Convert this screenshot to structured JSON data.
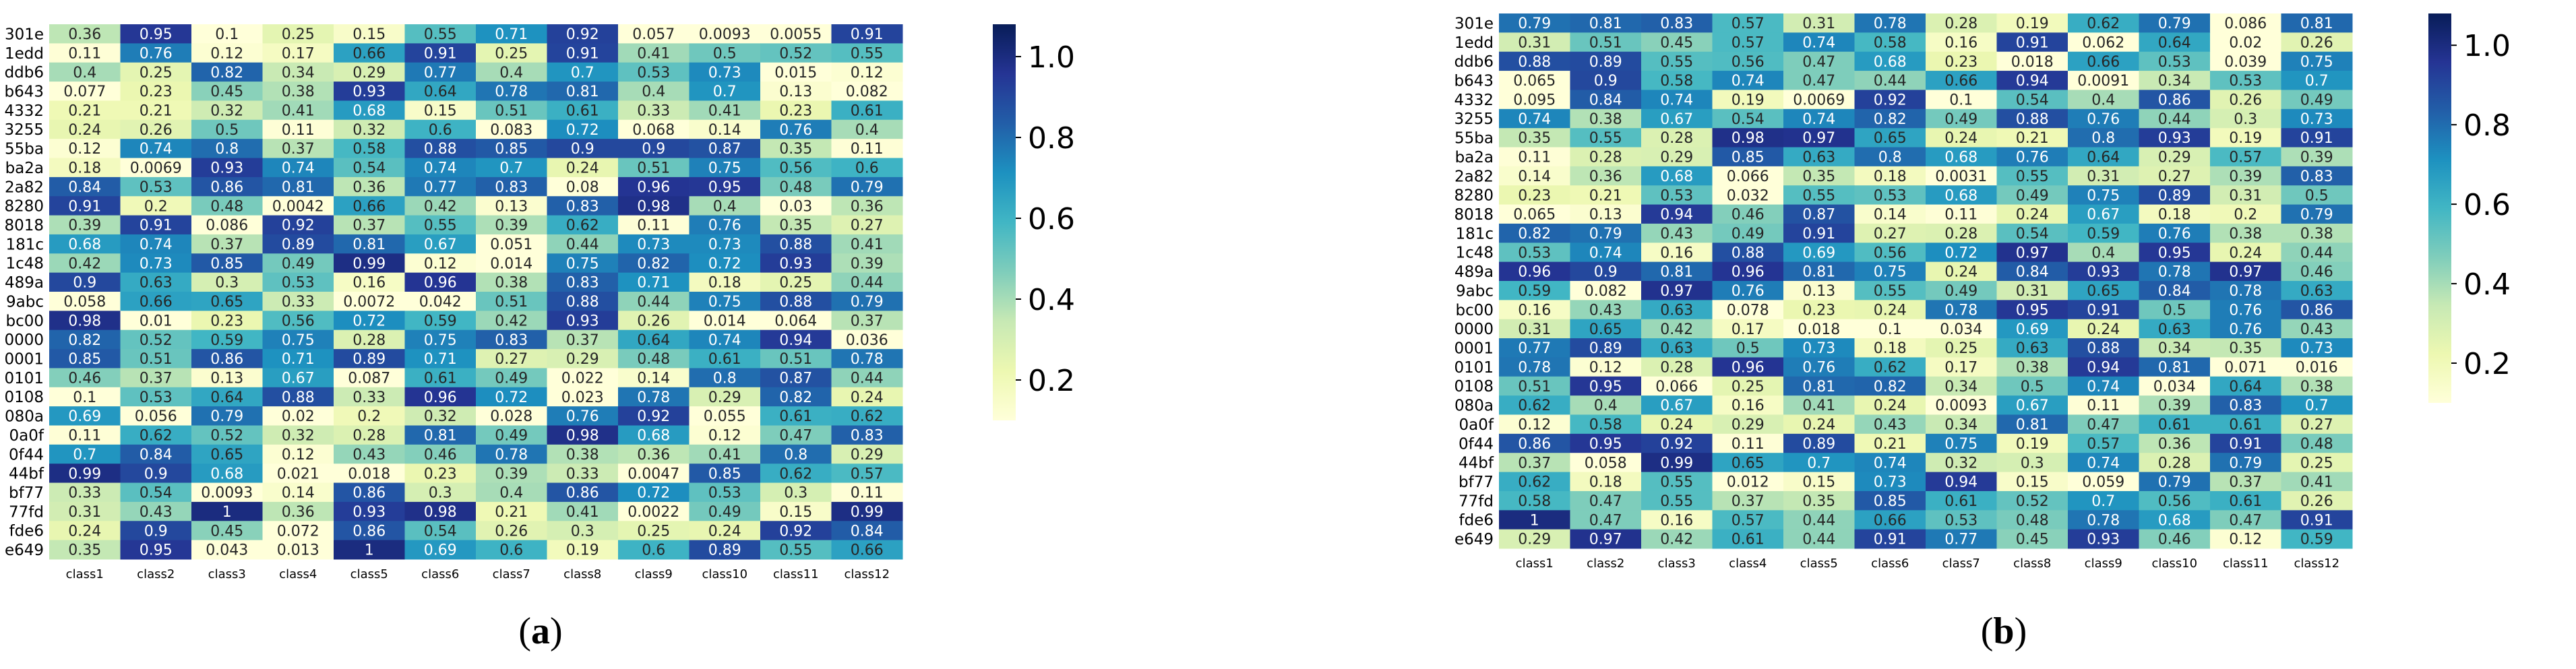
{
  "panels": [
    {
      "label": "(a)",
      "bold_char": "a"
    },
    {
      "label": "(b)",
      "bold_char": "b"
    }
  ],
  "chart_data": [
    {
      "type": "heatmap",
      "title": "",
      "xlabel": "",
      "ylabel": "",
      "row_labels": [
        "301e",
        "1edd",
        "ddb6",
        "b643",
        "4332",
        "3255",
        "55ba",
        "ba2a",
        "2a82",
        "8280",
        "8018",
        "181c",
        "1c48",
        "489a",
        "9abc",
        "bc00",
        "0000",
        "0001",
        "0101",
        "0108",
        "080a",
        "0a0f",
        "0f44",
        "44bf",
        "bf77",
        "77fd",
        "fde6",
        "e649"
      ],
      "col_labels": [
        "class1",
        "class2",
        "class3",
        "class4",
        "class5",
        "class6",
        "class7",
        "class8",
        "class9",
        "class10",
        "class11",
        "class12"
      ],
      "colorbar": {
        "min": 0.1,
        "max": 1.08,
        "ticks": [
          0.2,
          0.4,
          0.6,
          0.8,
          1.0
        ],
        "tick_labels": [
          "0.2",
          "0.4",
          "0.6",
          "0.8",
          "1.0"
        ],
        "colormap": "YlGnBu"
      },
      "values": [
        [
          "0.36",
          "0.95",
          "0.1",
          "0.25",
          "0.15",
          "0.55",
          "0.71",
          "0.92",
          "0.057",
          "0.0093",
          "0.0055",
          "0.91"
        ],
        [
          "0.11",
          "0.76",
          "0.12",
          "0.17",
          "0.66",
          "0.91",
          "0.25",
          "0.91",
          "0.41",
          "0.5",
          "0.52",
          "0.55"
        ],
        [
          "0.4",
          "0.25",
          "0.82",
          "0.34",
          "0.29",
          "0.77",
          "0.4",
          "0.7",
          "0.53",
          "0.73",
          "0.015",
          "0.12"
        ],
        [
          "0.077",
          "0.23",
          "0.45",
          "0.38",
          "0.93",
          "0.64",
          "0.78",
          "0.81",
          "0.4",
          "0.7",
          "0.13",
          "0.082"
        ],
        [
          "0.21",
          "0.21",
          "0.32",
          "0.41",
          "0.68",
          "0.15",
          "0.51",
          "0.61",
          "0.33",
          "0.41",
          "0.23",
          "0.61"
        ],
        [
          "0.24",
          "0.26",
          "0.5",
          "0.11",
          "0.32",
          "0.6",
          "0.083",
          "0.72",
          "0.068",
          "0.14",
          "0.76",
          "0.4"
        ],
        [
          "0.12",
          "0.74",
          "0.8",
          "0.37",
          "0.58",
          "0.88",
          "0.85",
          "0.9",
          "0.9",
          "0.87",
          "0.35",
          "0.11"
        ],
        [
          "0.18",
          "0.0069",
          "0.93",
          "0.74",
          "0.54",
          "0.74",
          "0.7",
          "0.24",
          "0.51",
          "0.75",
          "0.56",
          "0.6"
        ],
        [
          "0.84",
          "0.53",
          "0.86",
          "0.81",
          "0.36",
          "0.77",
          "0.83",
          "0.08",
          "0.96",
          "0.95",
          "0.48",
          "0.79"
        ],
        [
          "0.91",
          "0.2",
          "0.48",
          "0.0042",
          "0.66",
          "0.42",
          "0.13",
          "0.83",
          "0.98",
          "0.4",
          "0.03",
          "0.36"
        ],
        [
          "0.39",
          "0.91",
          "0.086",
          "0.92",
          "0.37",
          "0.55",
          "0.39",
          "0.62",
          "0.11",
          "0.76",
          "0.35",
          "0.27"
        ],
        [
          "0.68",
          "0.74",
          "0.37",
          "0.89",
          "0.81",
          "0.67",
          "0.051",
          "0.44",
          "0.73",
          "0.73",
          "0.88",
          "0.41"
        ],
        [
          "0.42",
          "0.73",
          "0.85",
          "0.49",
          "0.99",
          "0.12",
          "0.014",
          "0.75",
          "0.82",
          "0.72",
          "0.93",
          "0.39"
        ],
        [
          "0.9",
          "0.63",
          "0.3",
          "0.53",
          "0.16",
          "0.96",
          "0.38",
          "0.83",
          "0.71",
          "0.18",
          "0.25",
          "0.44"
        ],
        [
          "0.058",
          "0.66",
          "0.65",
          "0.33",
          "0.0072",
          "0.042",
          "0.51",
          "0.88",
          "0.44",
          "0.75",
          "0.88",
          "0.79"
        ],
        [
          "0.98",
          "0.01",
          "0.23",
          "0.56",
          "0.72",
          "0.59",
          "0.42",
          "0.93",
          "0.26",
          "0.014",
          "0.064",
          "0.37"
        ],
        [
          "0.82",
          "0.52",
          "0.59",
          "0.75",
          "0.28",
          "0.75",
          "0.83",
          "0.37",
          "0.64",
          "0.74",
          "0.94",
          "0.036"
        ],
        [
          "0.85",
          "0.51",
          "0.86",
          "0.71",
          "0.89",
          "0.71",
          "0.27",
          "0.29",
          "0.48",
          "0.61",
          "0.51",
          "0.78"
        ],
        [
          "0.46",
          "0.37",
          "0.13",
          "0.67",
          "0.087",
          "0.61",
          "0.49",
          "0.022",
          "0.14",
          "0.8",
          "0.87",
          "0.44"
        ],
        [
          "0.1",
          "0.53",
          "0.64",
          "0.88",
          "0.33",
          "0.96",
          "0.72",
          "0.023",
          "0.78",
          "0.29",
          "0.82",
          "0.24"
        ],
        [
          "0.69",
          "0.056",
          "0.79",
          "0.02",
          "0.2",
          "0.32",
          "0.028",
          "0.76",
          "0.92",
          "0.055",
          "0.61",
          "0.62"
        ],
        [
          "0.11",
          "0.62",
          "0.52",
          "0.32",
          "0.28",
          "0.81",
          "0.49",
          "0.98",
          "0.68",
          "0.12",
          "0.47",
          "0.83"
        ],
        [
          "0.7",
          "0.84",
          "0.65",
          "0.12",
          "0.43",
          "0.46",
          "0.78",
          "0.38",
          "0.36",
          "0.41",
          "0.8",
          "0.29"
        ],
        [
          "0.99",
          "0.9",
          "0.68",
          "0.021",
          "0.018",
          "0.23",
          "0.39",
          "0.33",
          "0.0047",
          "0.85",
          "0.62",
          "0.57"
        ],
        [
          "0.33",
          "0.54",
          "0.0093",
          "0.14",
          "0.86",
          "0.3",
          "0.4",
          "0.86",
          "0.72",
          "0.53",
          "0.3",
          "0.11"
        ],
        [
          "0.31",
          "0.43",
          "1",
          "0.36",
          "0.93",
          "0.98",
          "0.21",
          "0.41",
          "0.0022",
          "0.49",
          "0.15",
          "0.99"
        ],
        [
          "0.24",
          "0.9",
          "0.45",
          "0.072",
          "0.86",
          "0.54",
          "0.26",
          "0.3",
          "0.25",
          "0.24",
          "0.92",
          "0.84"
        ],
        [
          "0.35",
          "0.95",
          "0.043",
          "0.013",
          "1",
          "0.69",
          "0.6",
          "0.19",
          "0.6",
          "0.89",
          "0.55",
          "0.66"
        ]
      ]
    },
    {
      "type": "heatmap",
      "title": "",
      "xlabel": "",
      "ylabel": "",
      "row_labels": [
        "301e",
        "1edd",
        "ddb6",
        "b643",
        "4332",
        "3255",
        "55ba",
        "ba2a",
        "2a82",
        "8280",
        "8018",
        "181c",
        "1c48",
        "489a",
        "9abc",
        "bc00",
        "0000",
        "0001",
        "0101",
        "0108",
        "080a",
        "0a0f",
        "0f44",
        "44bf",
        "bf77",
        "77fd",
        "fde6",
        "e649"
      ],
      "col_labels": [
        "class1",
        "class2",
        "class3",
        "class4",
        "class5",
        "class6",
        "class7",
        "class8",
        "class9",
        "class10",
        "class11",
        "class12"
      ],
      "colorbar": {
        "min": 0.1,
        "max": 1.08,
        "ticks": [
          0.2,
          0.4,
          0.6,
          0.8,
          1.0
        ],
        "tick_labels": [
          "0.2",
          "0.4",
          "0.6",
          "0.8",
          "1.0"
        ],
        "colormap": "YlGnBu"
      },
      "values": [
        [
          "0.79",
          "0.81",
          "0.83",
          "0.57",
          "0.31",
          "0.78",
          "0.28",
          "0.19",
          "0.62",
          "0.79",
          "0.086",
          "0.81"
        ],
        [
          "0.31",
          "0.51",
          "0.45",
          "0.57",
          "0.74",
          "0.58",
          "0.16",
          "0.91",
          "0.062",
          "0.64",
          "0.02",
          "0.26"
        ],
        [
          "0.88",
          "0.89",
          "0.55",
          "0.56",
          "0.47",
          "0.68",
          "0.23",
          "0.018",
          "0.66",
          "0.53",
          "0.039",
          "0.75"
        ],
        [
          "0.065",
          "0.9",
          "0.58",
          "0.74",
          "0.47",
          "0.44",
          "0.66",
          "0.94",
          "0.0091",
          "0.34",
          "0.53",
          "0.7"
        ],
        [
          "0.095",
          "0.84",
          "0.74",
          "0.19",
          "0.0069",
          "0.92",
          "0.1",
          "0.54",
          "0.4",
          "0.86",
          "0.26",
          "0.49"
        ],
        [
          "0.74",
          "0.38",
          "0.67",
          "0.54",
          "0.74",
          "0.82",
          "0.49",
          "0.88",
          "0.76",
          "0.44",
          "0.3",
          "0.73"
        ],
        [
          "0.35",
          "0.55",
          "0.28",
          "0.98",
          "0.97",
          "0.65",
          "0.24",
          "0.21",
          "0.8",
          "0.93",
          "0.19",
          "0.91"
        ],
        [
          "0.11",
          "0.28",
          "0.29",
          "0.85",
          "0.63",
          "0.8",
          "0.68",
          "0.76",
          "0.64",
          "0.29",
          "0.57",
          "0.39"
        ],
        [
          "0.14",
          "0.36",
          "0.68",
          "0.066",
          "0.35",
          "0.18",
          "0.0031",
          "0.55",
          "0.31",
          "0.27",
          "0.39",
          "0.83"
        ],
        [
          "0.23",
          "0.21",
          "0.53",
          "0.032",
          "0.55",
          "0.53",
          "0.68",
          "0.49",
          "0.75",
          "0.89",
          "0.31",
          "0.5"
        ],
        [
          "0.065",
          "0.13",
          "0.94",
          "0.46",
          "0.87",
          "0.14",
          "0.11",
          "0.24",
          "0.67",
          "0.18",
          "0.2",
          "0.79"
        ],
        [
          "0.82",
          "0.79",
          "0.43",
          "0.49",
          "0.91",
          "0.27",
          "0.28",
          "0.54",
          "0.59",
          "0.76",
          "0.38",
          "0.38"
        ],
        [
          "0.53",
          "0.74",
          "0.16",
          "0.88",
          "0.69",
          "0.56",
          "0.72",
          "0.97",
          "0.4",
          "0.95",
          "0.24",
          "0.44"
        ],
        [
          "0.96",
          "0.9",
          "0.81",
          "0.96",
          "0.81",
          "0.75",
          "0.24",
          "0.84",
          "0.93",
          "0.78",
          "0.97",
          "0.46"
        ],
        [
          "0.59",
          "0.082",
          "0.97",
          "0.76",
          "0.13",
          "0.55",
          "0.49",
          "0.31",
          "0.65",
          "0.84",
          "0.78",
          "0.63"
        ],
        [
          "0.16",
          "0.43",
          "0.63",
          "0.078",
          "0.23",
          "0.24",
          "0.78",
          "0.95",
          "0.91",
          "0.5",
          "0.76",
          "0.86"
        ],
        [
          "0.31",
          "0.65",
          "0.42",
          "0.17",
          "0.018",
          "0.1",
          "0.034",
          "0.69",
          "0.24",
          "0.63",
          "0.76",
          "0.43"
        ],
        [
          "0.77",
          "0.89",
          "0.63",
          "0.5",
          "0.73",
          "0.18",
          "0.25",
          "0.63",
          "0.88",
          "0.34",
          "0.35",
          "0.73"
        ],
        [
          "0.78",
          "0.12",
          "0.28",
          "0.96",
          "0.76",
          "0.62",
          "0.17",
          "0.38",
          "0.94",
          "0.81",
          "0.071",
          "0.016"
        ],
        [
          "0.51",
          "0.95",
          "0.066",
          "0.25",
          "0.81",
          "0.82",
          "0.34",
          "0.5",
          "0.74",
          "0.034",
          "0.64",
          "0.38"
        ],
        [
          "0.62",
          "0.4",
          "0.67",
          "0.16",
          "0.41",
          "0.24",
          "0.0093",
          "0.67",
          "0.11",
          "0.39",
          "0.83",
          "0.7"
        ],
        [
          "0.12",
          "0.58",
          "0.24",
          "0.29",
          "0.24",
          "0.43",
          "0.34",
          "0.81",
          "0.47",
          "0.61",
          "0.61",
          "0.27"
        ],
        [
          "0.86",
          "0.95",
          "0.92",
          "0.11",
          "0.89",
          "0.21",
          "0.75",
          "0.19",
          "0.57",
          "0.36",
          "0.91",
          "0.48"
        ],
        [
          "0.37",
          "0.058",
          "0.99",
          "0.65",
          "0.7",
          "0.74",
          "0.32",
          "0.3",
          "0.74",
          "0.28",
          "0.79",
          "0.25"
        ],
        [
          "0.62",
          "0.18",
          "0.55",
          "0.012",
          "0.15",
          "0.73",
          "0.94",
          "0.15",
          "0.059",
          "0.79",
          "0.37",
          "0.41"
        ],
        [
          "0.58",
          "0.47",
          "0.55",
          "0.37",
          "0.35",
          "0.85",
          "0.61",
          "0.52",
          "0.7",
          "0.56",
          "0.61",
          "0.26"
        ],
        [
          "1",
          "0.47",
          "0.16",
          "0.57",
          "0.44",
          "0.66",
          "0.53",
          "0.48",
          "0.78",
          "0.68",
          "0.47",
          "0.91"
        ],
        [
          "0.29",
          "0.97",
          "0.42",
          "0.61",
          "0.44",
          "0.91",
          "0.77",
          "0.45",
          "0.93",
          "0.46",
          "0.12",
          "0.59"
        ]
      ]
    }
  ]
}
